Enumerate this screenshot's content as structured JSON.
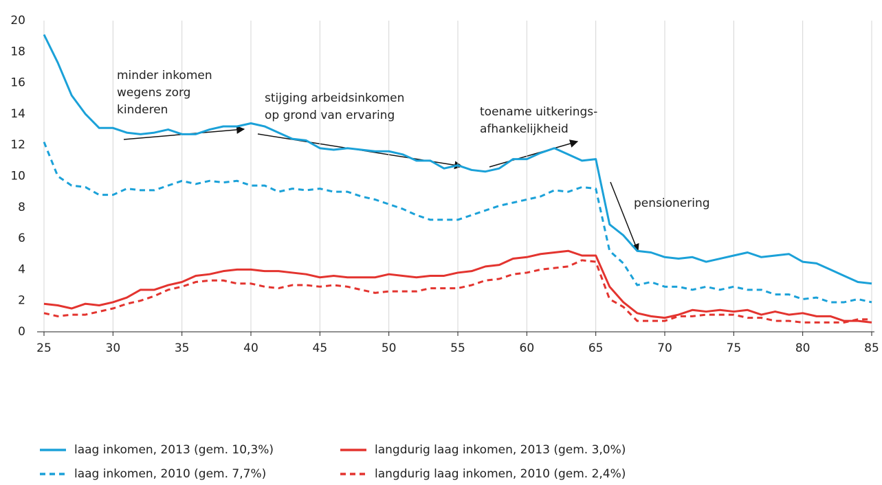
{
  "chart_data": {
    "type": "line",
    "x": [
      25,
      26,
      27,
      28,
      29,
      30,
      31,
      32,
      33,
      34,
      35,
      36,
      37,
      38,
      39,
      40,
      41,
      42,
      43,
      44,
      45,
      46,
      47,
      48,
      49,
      50,
      51,
      52,
      53,
      54,
      55,
      56,
      57,
      58,
      59,
      60,
      61,
      62,
      63,
      64,
      65,
      66,
      67,
      68,
      69,
      70,
      71,
      72,
      73,
      74,
      75,
      76,
      77,
      78,
      79,
      80,
      81,
      82,
      83,
      84,
      85
    ],
    "series": [
      {
        "name": "laag inkomen, 2013 (gem. 10,3%)",
        "color": "#1ba1d8",
        "style": "solid",
        "values": [
          19.1,
          17.3,
          15.2,
          14.0,
          13.1,
          13.1,
          12.8,
          12.7,
          12.8,
          13.0,
          12.7,
          12.7,
          13.0,
          13.2,
          13.2,
          13.4,
          13.2,
          12.8,
          12.4,
          12.3,
          11.8,
          11.7,
          11.8,
          11.7,
          11.6,
          11.6,
          11.4,
          11.0,
          11.0,
          10.5,
          10.7,
          10.4,
          10.3,
          10.5,
          11.1,
          11.1,
          11.5,
          11.8,
          11.4,
          11.0,
          11.1,
          6.9,
          6.2,
          5.2,
          5.1,
          4.8,
          4.7,
          4.8,
          4.5,
          4.7,
          4.9,
          5.1,
          4.8,
          4.9,
          5.0,
          4.5,
          4.4,
          4.0,
          3.6,
          3.2,
          3.1
        ]
      },
      {
        "name": "langdurig laag inkomen, 2013 (gem. 3,0%)",
        "color": "#e3342f",
        "style": "solid",
        "values": [
          1.8,
          1.7,
          1.5,
          1.8,
          1.7,
          1.9,
          2.2,
          2.7,
          2.7,
          3.0,
          3.2,
          3.6,
          3.7,
          3.9,
          4.0,
          4.0,
          3.9,
          3.9,
          3.8,
          3.7,
          3.5,
          3.6,
          3.5,
          3.5,
          3.5,
          3.7,
          3.6,
          3.5,
          3.6,
          3.6,
          3.8,
          3.9,
          4.2,
          4.3,
          4.7,
          4.8,
          5.0,
          5.1,
          5.2,
          4.9,
          4.9,
          2.9,
          1.9,
          1.2,
          1.0,
          0.9,
          1.1,
          1.4,
          1.3,
          1.4,
          1.3,
          1.4,
          1.1,
          1.3,
          1.1,
          1.2,
          1.0,
          1.0,
          0.7,
          0.7,
          0.6
        ]
      },
      {
        "name": "laag inkomen, 2010 (gem. 7,7%)",
        "color": "#1ba1d8",
        "style": "dashed",
        "values": [
          12.2,
          10.0,
          9.4,
          9.3,
          8.8,
          8.8,
          9.2,
          9.1,
          9.1,
          9.4,
          9.7,
          9.5,
          9.7,
          9.6,
          9.7,
          9.4,
          9.4,
          9.0,
          9.2,
          9.1,
          9.2,
          9.0,
          9.0,
          8.7,
          8.5,
          8.2,
          7.9,
          7.5,
          7.2,
          7.2,
          7.2,
          7.5,
          7.8,
          8.1,
          8.3,
          8.5,
          8.7,
          9.1,
          9.0,
          9.3,
          9.2,
          5.2,
          4.4,
          3.0,
          3.2,
          2.9,
          2.9,
          2.7,
          2.9,
          2.7,
          2.9,
          2.7,
          2.7,
          2.4,
          2.4,
          2.1,
          2.2,
          1.9,
          1.9,
          2.1,
          1.9
        ]
      },
      {
        "name": "langdurig laag inkomen, 2010 (gem. 2,4%)",
        "color": "#e3342f",
        "style": "dashed",
        "values": [
          1.2,
          1.0,
          1.1,
          1.1,
          1.3,
          1.5,
          1.8,
          2.0,
          2.3,
          2.7,
          2.9,
          3.2,
          3.3,
          3.3,
          3.1,
          3.1,
          2.9,
          2.8,
          3.0,
          3.0,
          2.9,
          3.0,
          2.9,
          2.7,
          2.5,
          2.6,
          2.6,
          2.6,
          2.8,
          2.8,
          2.8,
          3.0,
          3.3,
          3.4,
          3.7,
          3.8,
          4.0,
          4.1,
          4.2,
          4.6,
          4.5,
          2.1,
          1.6,
          0.7,
          0.7,
          0.7,
          1.0,
          1.0,
          1.1,
          1.1,
          1.1,
          0.9,
          0.9,
          0.7,
          0.7,
          0.6,
          0.6,
          0.6,
          0.6,
          0.8,
          0.8
        ]
      }
    ],
    "xlim": [
      25,
      85
    ],
    "xticks": [
      25,
      30,
      35,
      40,
      45,
      50,
      55,
      60,
      65,
      70,
      75,
      80,
      85
    ],
    "ylim": [
      0,
      20
    ],
    "yticks": [
      0,
      2,
      4,
      6,
      8,
      10,
      12,
      14,
      16,
      18,
      20
    ],
    "grid": "x",
    "legend": "bottom",
    "annotations": [
      {
        "lines": [
          "minder inkomen",
          "wegens zorg",
          "kinderen"
        ]
      },
      {
        "lines": [
          "stijging arbeidsinkomen",
          "op grond van ervaring"
        ]
      },
      {
        "lines": [
          "toename uitkerings-",
          "afhankelijkheid"
        ]
      },
      {
        "lines": [
          "pensionering"
        ]
      }
    ]
  }
}
